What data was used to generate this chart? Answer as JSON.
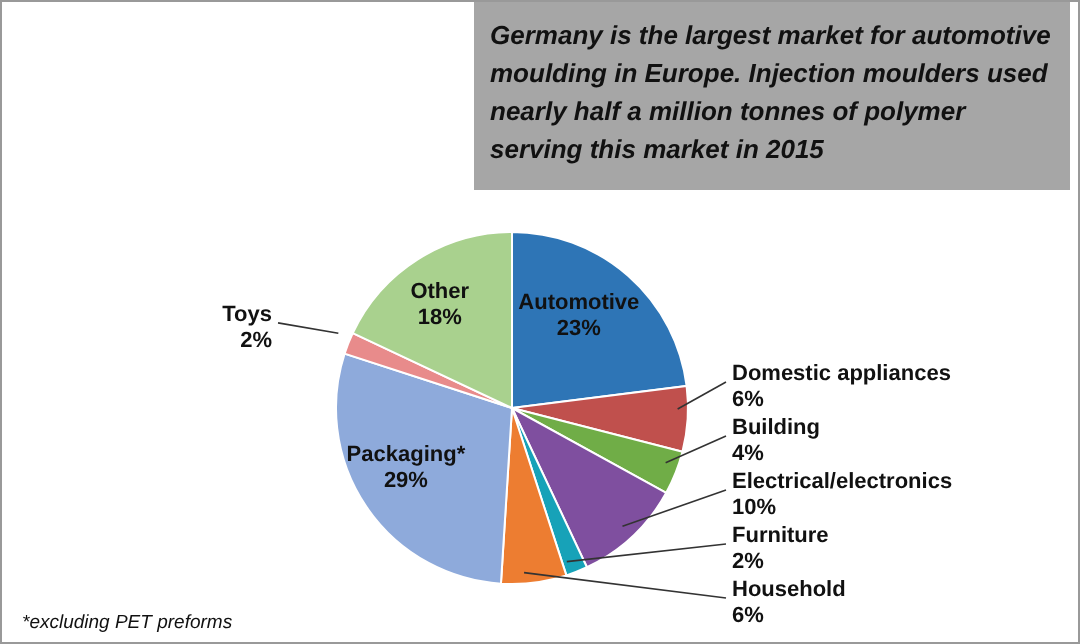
{
  "chart_data": {
    "type": "pie",
    "title": "Germany is the largest market for automotive moulding in Europe. Injection moulders used nearly half a million tonnes of polymer serving this market in 2015",
    "categories": [
      "Automotive",
      "Domestic appliances",
      "Building",
      "Electrical/electronics",
      "Furniture",
      "Household",
      "Packaging*",
      "Toys",
      "Other"
    ],
    "values": [
      23,
      6,
      4,
      10,
      2,
      6,
      29,
      2,
      18
    ],
    "value_labels": [
      "23%",
      "6%",
      "4%",
      "10%",
      "2%",
      "6%",
      "29%",
      "2%",
      "18%"
    ],
    "colors": [
      "#2e75b6",
      "#c0504d",
      "#70ad47",
      "#7f4f9f",
      "#17a2b8",
      "#ed7d31",
      "#8eaadb",
      "#e88b8b",
      "#a9d18e"
    ],
    "annotations": [
      "*excluding PET preforms"
    ]
  }
}
